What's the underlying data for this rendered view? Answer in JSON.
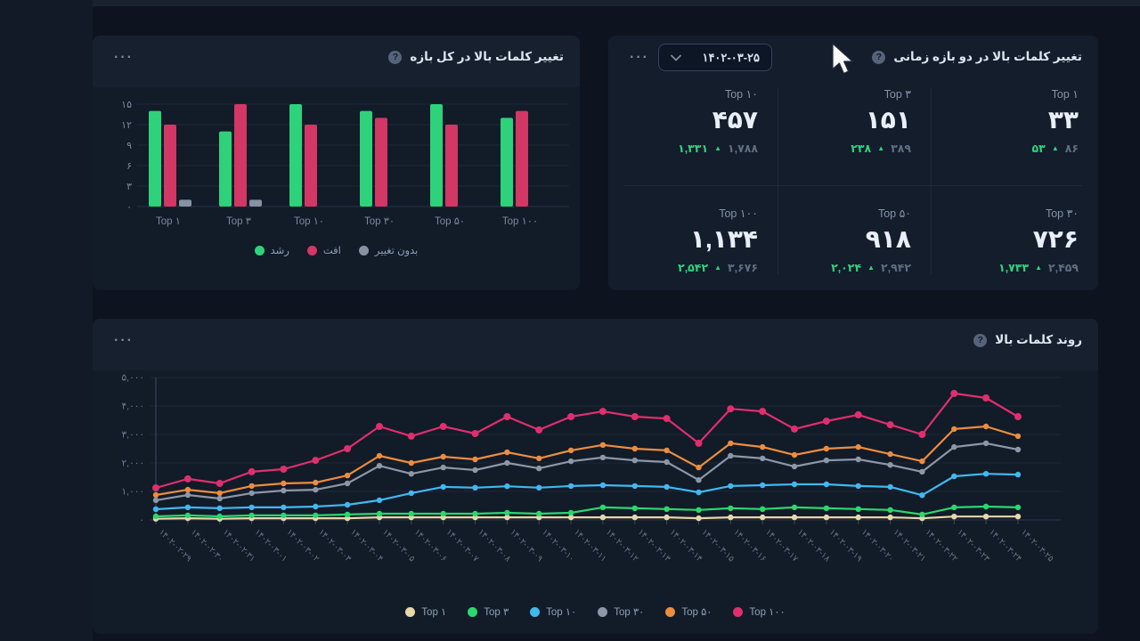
{
  "icons": {
    "help": "?"
  },
  "whole_period_card": {
    "title": "تغییر کلمات بالا در کل بازه",
    "menu_label": "···"
  },
  "compare_card": {
    "title": "تغییر کلمات بالا در دو بازه زمانی",
    "menu_label": "···",
    "date_dropdown": {
      "value": "۱۴۰۲-۰۳-۲۵"
    },
    "arrow_up": "▲",
    "stats": [
      {
        "label": "Top ۱",
        "value": "۳۳",
        "prev": "۵۳",
        "curr": "۸۶"
      },
      {
        "label": "Top ۳",
        "value": "۱۵۱",
        "prev": "۲۳۸",
        "curr": "۳۸۹"
      },
      {
        "label": "Top ۱۰",
        "value": "۴۵۷",
        "prev": "۱,۳۳۱",
        "curr": "۱,۷۸۸"
      },
      {
        "label": "Top ۳۰",
        "value": "۷۲۶",
        "prev": "۱,۷۳۳",
        "curr": "۲,۴۵۹"
      },
      {
        "label": "Top ۵۰",
        "value": "۹۱۸",
        "prev": "۲,۰۲۴",
        "curr": "۲,۹۴۲"
      },
      {
        "label": "Top ۱۰۰",
        "value": "۱,۱۳۴",
        "prev": "۲,۵۴۲",
        "curr": "۳,۶۷۶"
      }
    ]
  },
  "trend_card": {
    "title": "روند کلمات بالا",
    "menu_label": "···"
  },
  "chart_data": [
    {
      "type": "bar",
      "title": "تغییر کلمات بالا در کل بازه",
      "categories": [
        "Top ۱",
        "Top ۳",
        "Top ۱۰",
        "Top ۳۰",
        "Top ۵۰",
        "Top ۱۰۰"
      ],
      "series": [
        {
          "name": "رشد",
          "color": "#2dd27a",
          "values": [
            14,
            11,
            15,
            14,
            15,
            13
          ]
        },
        {
          "name": "افت",
          "color": "#d23765",
          "values": [
            12,
            15,
            12,
            13,
            12,
            14
          ]
        },
        {
          "name": "بدون تغییر",
          "color": "#8792a3",
          "values": [
            1,
            1,
            0,
            0,
            0,
            0
          ]
        }
      ],
      "ylim": [
        0,
        15
      ],
      "ytick_labels": [
        "۰",
        "۳",
        "۶",
        "۹",
        "۱۲",
        "۱۵"
      ],
      "grid": true,
      "legend_position": "bottom"
    },
    {
      "type": "line",
      "title": "روند کلمات بالا",
      "x": [
        "۱۴۰۲-۰۲-۲۹",
        "۱۴۰۲-۰۲-۳۰",
        "۱۴۰۲-۰۲-۳۱",
        "۱۴۰۲-۰۳-۰۱",
        "۱۴۰۲-۰۳-۰۲",
        "۱۴۰۲-۰۳-۰۳",
        "۱۴۰۲-۰۳-۰۴",
        "۱۴۰۲-۰۳-۰۵",
        "۱۴۰۲-۰۳-۰۶",
        "۱۴۰۲-۰۳-۰۷",
        "۱۴۰۲-۰۳-۰۸",
        "۱۴۰۲-۰۳-۰۹",
        "۱۴۰۲-۰۳-۱۰",
        "۱۴۰۲-۰۳-۱۱",
        "۱۴۰۲-۰۳-۱۲",
        "۱۴۰۲-۰۳-۱۳",
        "۱۴۰۲-۰۳-۱۴",
        "۱۴۰۲-۰۳-۱۵",
        "۱۴۰۲-۰۳-۱۶",
        "۱۴۰۲-۰۳-۱۷",
        "۱۴۰۲-۰۳-۱۸",
        "۱۴۰۲-۰۳-۱۹",
        "۱۴۰۲-۰۳-۲۰",
        "۱۴۰۲-۰۳-۲۱",
        "۱۴۰۲-۰۳-۲۲",
        "۱۴۰۲-۰۳-۲۳",
        "۱۴۰۲-۰۳-۲۴",
        "۱۴۰۲-۰۳-۲۵"
      ],
      "series": [
        {
          "name": "Top ۱",
          "color": "#e8d7a9",
          "values": [
            40,
            60,
            40,
            60,
            60,
            60,
            60,
            90,
            90,
            90,
            90,
            90,
            90,
            90,
            90,
            90,
            90,
            60,
            90,
            90,
            90,
            90,
            90,
            90,
            60,
            120,
            120,
            120
          ]
        },
        {
          "name": "Top ۳",
          "color": "#2bd76f",
          "values": [
            125,
            160,
            125,
            160,
            160,
            160,
            190,
            220,
            220,
            220,
            220,
            250,
            220,
            250,
            440,
            410,
            380,
            350,
            410,
            380,
            440,
            410,
            380,
            350,
            190,
            440,
            470,
            440
          ]
        },
        {
          "name": "Top ۱۰",
          "color": "#41b8f0",
          "values": [
            375,
            440,
            410,
            440,
            440,
            470,
            530,
            690,
            940,
            1160,
            1130,
            1180,
            1130,
            1190,
            1220,
            1190,
            1160,
            970,
            1190,
            1220,
            1250,
            1250,
            1190,
            1160,
            870,
            1530,
            1620,
            1590
          ]
        },
        {
          "name": "Top ۳۰",
          "color": "#8c97a7",
          "values": [
            690,
            875,
            750,
            940,
            1030,
            1060,
            1280,
            1900,
            1620,
            1840,
            1750,
            2000,
            1810,
            2060,
            2190,
            2090,
            2030,
            1400,
            2250,
            2160,
            1875,
            2090,
            2125,
            1930,
            1690,
            2560,
            2690,
            2470
          ]
        },
        {
          "name": "Top ۵۰",
          "color": "#ec8d3f",
          "values": [
            875,
            1060,
            940,
            1190,
            1280,
            1310,
            1560,
            2250,
            2000,
            2220,
            2125,
            2375,
            2160,
            2440,
            2630,
            2500,
            2440,
            1840,
            2690,
            2560,
            2280,
            2500,
            2560,
            2310,
            2060,
            3190,
            3280,
            2940
          ]
        },
        {
          "name": "Top ۱۰۰",
          "color": "#df2f6e",
          "values": [
            1125,
            1440,
            1280,
            1690,
            1780,
            2090,
            2500,
            3280,
            2940,
            3280,
            3030,
            3625,
            3160,
            3625,
            3810,
            3625,
            3560,
            2690,
            3900,
            3810,
            3190,
            3470,
            3690,
            3340,
            3000,
            4440,
            4280,
            3625
          ]
        }
      ],
      "ylim": [
        0,
        5000
      ],
      "ytick_labels": [
        "۰",
        "۱,۰۰۰",
        "۲,۰۰۰",
        "۳,۰۰۰",
        "۴,۰۰۰",
        "۵,۰۰۰"
      ],
      "grid": true,
      "legend_position": "bottom"
    }
  ]
}
